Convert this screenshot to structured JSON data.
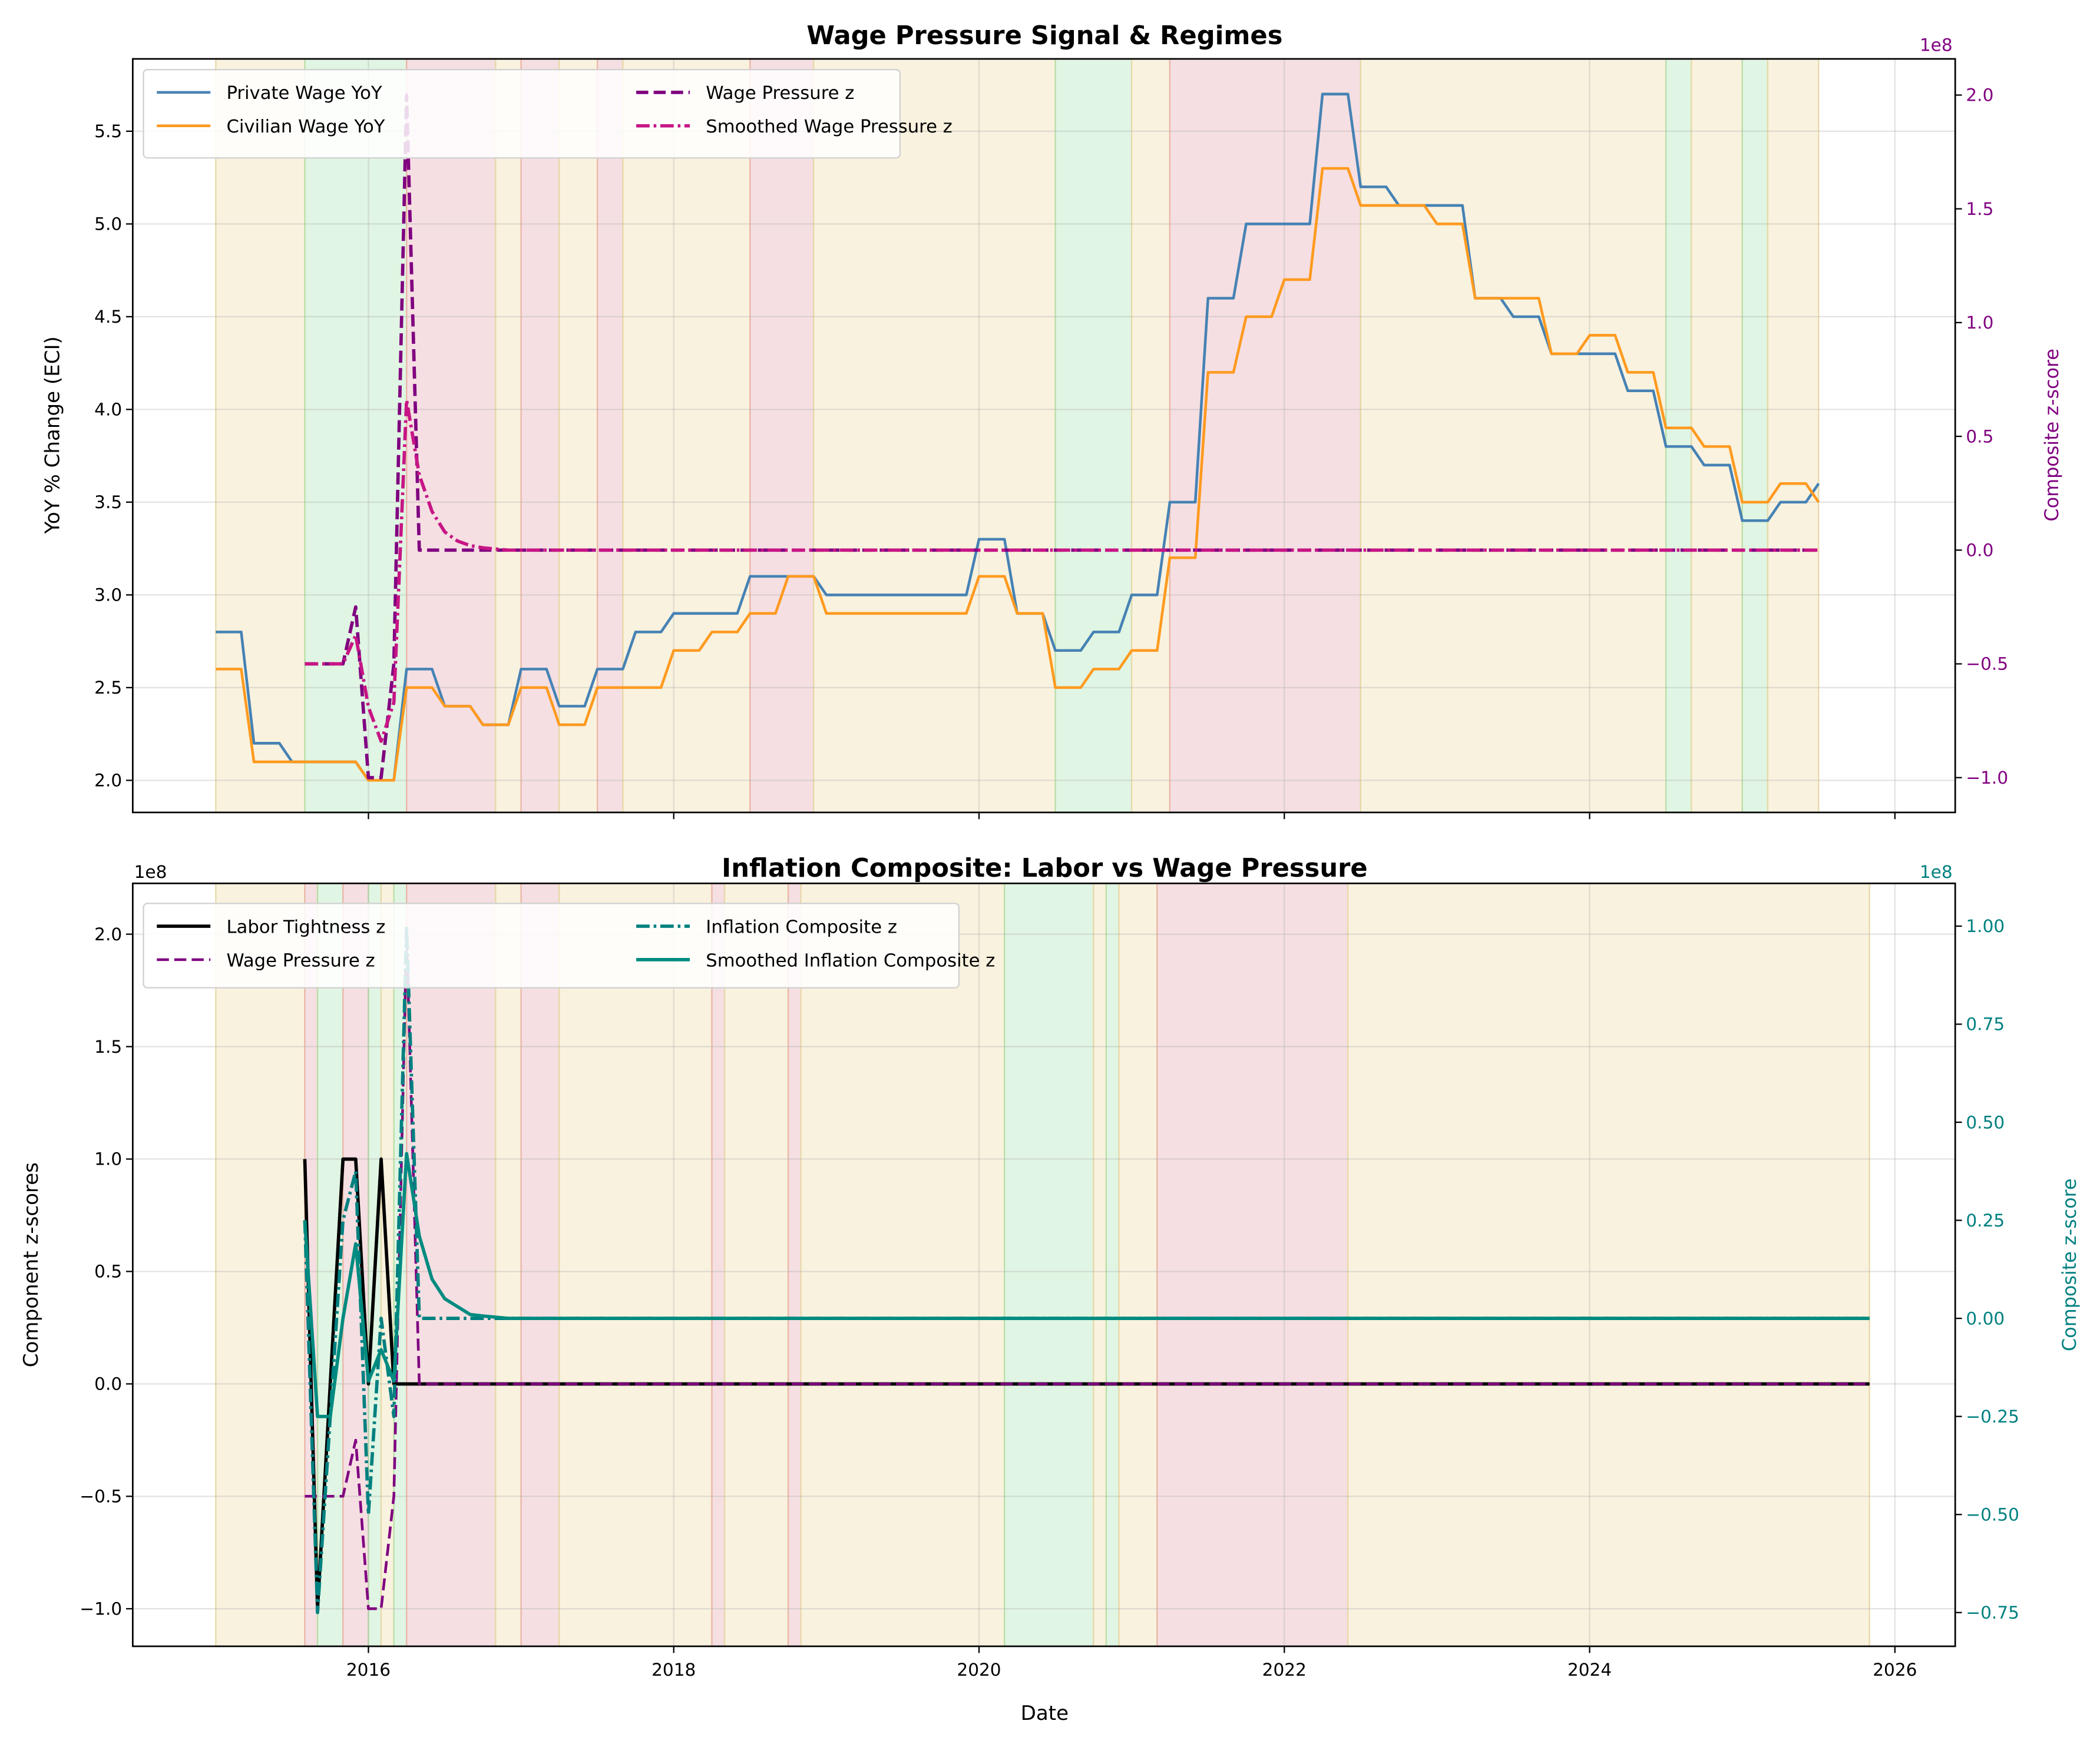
{
  "chart_data": [
    {
      "type": "line",
      "title": "Wage Pressure Signal & Regimes",
      "xlabel": "",
      "ylabel": "YoY % Change (ECI)",
      "ylabel_right": "Composite z-score",
      "y_right_offset_label": "1e8",
      "xlim": [
        2014.456,
        2026.395
      ],
      "ylim": [
        1.827,
        5.89
      ],
      "ylim_right": [
        -1.153,
        2.159
      ],
      "yticks": [
        "2.0",
        "2.5",
        "3.0",
        "3.5",
        "4.0",
        "4.5",
        "5.0",
        "5.5"
      ],
      "yticks_right": [
        "−1.0",
        "−0.5",
        "0.0",
        "0.5",
        "1.0",
        "1.5",
        "2.0"
      ],
      "grid": true,
      "legend_placement": "upper-left",
      "colors": {
        "private": "#4682b4",
        "civilian": "#ff9a1f",
        "wage_pressure": "#800080",
        "smoothed": "#c71585",
        "right_axis": "#800080"
      },
      "regimes": [
        {
          "start": "2015-01",
          "end": "2015-08",
          "regime": "neutral"
        },
        {
          "start": "2015-08",
          "end": "2016-04",
          "regime": "green"
        },
        {
          "start": "2016-04",
          "end": "2016-11",
          "regime": "red"
        },
        {
          "start": "2016-11",
          "end": "2017-01",
          "regime": "neutral"
        },
        {
          "start": "2017-01",
          "end": "2017-04",
          "regime": "red"
        },
        {
          "start": "2017-04",
          "end": "2017-07",
          "regime": "neutral"
        },
        {
          "start": "2017-07",
          "end": "2017-09",
          "regime": "red"
        },
        {
          "start": "2017-09",
          "end": "2018-07",
          "regime": "neutral"
        },
        {
          "start": "2018-07",
          "end": "2018-12",
          "regime": "red"
        },
        {
          "start": "2018-12",
          "end": "2020-07",
          "regime": "neutral"
        },
        {
          "start": "2020-07",
          "end": "2021-01",
          "regime": "green"
        },
        {
          "start": "2021-01",
          "end": "2021-04",
          "regime": "neutral"
        },
        {
          "start": "2021-04",
          "end": "2022-07",
          "regime": "red"
        },
        {
          "start": "2022-07",
          "end": "2024-07",
          "regime": "neutral"
        },
        {
          "start": "2024-07",
          "end": "2024-09",
          "regime": "green"
        },
        {
          "start": "2024-09",
          "end": "2025-01",
          "regime": "neutral"
        },
        {
          "start": "2025-01",
          "end": "2025-03",
          "regime": "green"
        },
        {
          "start": "2025-03",
          "end": "2025-07",
          "regime": "neutral"
        }
      ],
      "series": [
        {
          "name": "Private Wage YoY",
          "axis": "left",
          "style": "solid",
          "quarterly_start": "2015-01",
          "end": "2025-07",
          "values": [
            2.8,
            2.2,
            2.1,
            2.1,
            2.0,
            2.6,
            2.4,
            2.3,
            2.6,
            2.4,
            2.6,
            2.8,
            2.9,
            2.9,
            3.1,
            3.1,
            3.0,
            3.0,
            3.0,
            3.0,
            3.3,
            2.9,
            2.7,
            2.8,
            3.0,
            3.5,
            4.6,
            5.0,
            5.0,
            5.7,
            5.2,
            5.1,
            5.1,
            4.6,
            4.5,
            4.3,
            4.3,
            4.1,
            3.8,
            3.7,
            3.4,
            3.5,
            3.6
          ]
        },
        {
          "name": "Civilian Wage YoY",
          "axis": "left",
          "style": "solid",
          "quarterly_start": "2015-01",
          "end": "2025-07",
          "values": [
            2.6,
            2.1,
            2.1,
            2.1,
            2.0,
            2.5,
            2.4,
            2.3,
            2.5,
            2.3,
            2.5,
            2.5,
            2.7,
            2.8,
            2.9,
            3.1,
            2.9,
            2.9,
            2.9,
            2.9,
            3.1,
            2.9,
            2.5,
            2.6,
            2.7,
            3.2,
            4.2,
            4.5,
            4.7,
            5.3,
            5.1,
            5.1,
            5.0,
            4.6,
            4.6,
            4.3,
            4.4,
            4.2,
            3.9,
            3.8,
            3.5,
            3.6,
            3.5
          ]
        },
        {
          "name": "Wage Pressure z",
          "axis": "right",
          "style": "dashed",
          "points": [
            [
              "2015-08",
              -0.5
            ],
            [
              "2015-09",
              -0.5
            ],
            [
              "2015-10",
              -0.5
            ],
            [
              "2015-11",
              -0.5
            ],
            [
              "2015-12",
              -0.25
            ],
            [
              "2016-01",
              -1.0
            ],
            [
              "2016-02",
              -1.0
            ],
            [
              "2016-03",
              -0.5
            ],
            [
              "2016-04",
              2.0
            ],
            [
              "2016-05",
              0.0
            ],
            [
              "2025-07",
              0.0
            ]
          ]
        },
        {
          "name": "Smoothed Wage Pressure z",
          "axis": "right",
          "style": "dashdot",
          "points": [
            [
              "2015-08",
              -0.5
            ],
            [
              "2015-09",
              -0.5
            ],
            [
              "2015-10",
              -0.5
            ],
            [
              "2015-11",
              -0.5
            ],
            [
              "2015-12",
              -0.375
            ],
            [
              "2016-01",
              -0.69
            ],
            [
              "2016-02",
              -0.84
            ],
            [
              "2016-03",
              -0.67
            ],
            [
              "2016-04",
              0.66
            ],
            [
              "2016-05",
              0.33
            ],
            [
              "2016-06",
              0.17
            ],
            [
              "2016-07",
              0.08
            ],
            [
              "2016-08",
              0.04
            ],
            [
              "2016-09",
              0.02
            ],
            [
              "2016-10",
              0.01
            ],
            [
              "2016-11",
              0.005
            ],
            [
              "2016-12",
              0.0
            ],
            [
              "2025-07",
              0.0
            ]
          ]
        }
      ]
    },
    {
      "type": "line",
      "title": "Inflation Composite: Labor vs Wage Pressure",
      "xlabel": "Date",
      "ylabel": "Component z-scores",
      "ylabel_right": "Composite z-score",
      "y_left_offset_label": "1e8",
      "y_right_offset_label": "1e8",
      "xlim": [
        2014.456,
        2026.395
      ],
      "xticks": [
        "2016",
        "2018",
        "2020",
        "2022",
        "2024",
        "2026"
      ],
      "ylim": [
        -1.167,
        2.226
      ],
      "ylim_right": [
        -0.836,
        1.109
      ],
      "yticks": [
        "−1.0",
        "−0.5",
        "0.0",
        "0.5",
        "1.0",
        "1.5",
        "2.0"
      ],
      "yticks_right": [
        "−0.75",
        "−0.50",
        "−0.25",
        "0.00",
        "0.25",
        "0.50",
        "0.75",
        "1.00"
      ],
      "grid": true,
      "legend_placement": "upper-left",
      "colors": {
        "labor": "#000000",
        "wage_pressure": "#800080",
        "composite": "#008080",
        "smoothed": "#008b80",
        "right_axis": "#008080"
      },
      "regimes": [
        {
          "start": "2015-01",
          "end": "2015-08",
          "regime": "neutral"
        },
        {
          "start": "2015-08",
          "end": "2015-09",
          "regime": "red"
        },
        {
          "start": "2015-09",
          "end": "2015-11",
          "regime": "green"
        },
        {
          "start": "2015-11",
          "end": "2016-01",
          "regime": "red"
        },
        {
          "start": "2016-01",
          "end": "2016-02",
          "regime": "green"
        },
        {
          "start": "2016-02",
          "end": "2016-03",
          "regime": "neutral"
        },
        {
          "start": "2016-03",
          "end": "2016-04",
          "regime": "green"
        },
        {
          "start": "2016-04",
          "end": "2016-11",
          "regime": "red"
        },
        {
          "start": "2016-11",
          "end": "2017-01",
          "regime": "neutral"
        },
        {
          "start": "2017-01",
          "end": "2017-04",
          "regime": "red"
        },
        {
          "start": "2017-04",
          "end": "2018-04",
          "regime": "neutral"
        },
        {
          "start": "2018-04",
          "end": "2018-05",
          "regime": "red"
        },
        {
          "start": "2018-05",
          "end": "2018-10",
          "regime": "neutral"
        },
        {
          "start": "2018-10",
          "end": "2018-11",
          "regime": "red"
        },
        {
          "start": "2018-11",
          "end": "2020-03",
          "regime": "neutral"
        },
        {
          "start": "2020-03",
          "end": "2020-10",
          "regime": "green"
        },
        {
          "start": "2020-10",
          "end": "2020-11",
          "regime": "neutral"
        },
        {
          "start": "2020-11",
          "end": "2020-12",
          "regime": "green"
        },
        {
          "start": "2020-12",
          "end": "2021-03",
          "regime": "neutral"
        },
        {
          "start": "2021-03",
          "end": "2022-06",
          "regime": "red"
        },
        {
          "start": "2022-06",
          "end": "2025-11",
          "regime": "neutral"
        }
      ],
      "series": [
        {
          "name": "Labor Tightness z",
          "axis": "left",
          "style": "solid",
          "points": [
            [
              "2015-08",
              1.0
            ],
            [
              "2015-09",
              -1.0
            ],
            [
              "2015-10",
              0.0
            ],
            [
              "2015-11",
              1.0
            ],
            [
              "2015-12",
              1.0
            ],
            [
              "2016-01",
              0.0
            ],
            [
              "2016-02",
              1.0
            ],
            [
              "2016-03",
              0.0
            ],
            [
              "2025-11",
              0.0
            ]
          ]
        },
        {
          "name": "Wage Pressure z",
          "axis": "left",
          "style": "dashed",
          "points": [
            [
              "2015-08",
              -0.5
            ],
            [
              "2015-09",
              -0.5
            ],
            [
              "2015-10",
              -0.5
            ],
            [
              "2015-11",
              -0.5
            ],
            [
              "2015-12",
              -0.25
            ],
            [
              "2016-01",
              -1.0
            ],
            [
              "2016-02",
              -1.0
            ],
            [
              "2016-03",
              -0.5
            ],
            [
              "2016-04",
              2.0
            ],
            [
              "2016-05",
              0.0
            ],
            [
              "2025-11",
              0.0
            ]
          ]
        },
        {
          "name": "Inflation Composite z",
          "axis": "right",
          "style": "dashdot",
          "points": [
            [
              "2015-08",
              0.25
            ],
            [
              "2015-09",
              -0.75
            ],
            [
              "2015-10",
              -0.25
            ],
            [
              "2015-11",
              0.25
            ],
            [
              "2015-12",
              0.375
            ],
            [
              "2016-01",
              -0.5
            ],
            [
              "2016-02",
              0.0
            ],
            [
              "2016-03",
              -0.25
            ],
            [
              "2016-04",
              1.0
            ],
            [
              "2016-05",
              0.0
            ],
            [
              "2025-11",
              0.0
            ]
          ]
        },
        {
          "name": "Smoothed Inflation Composite z",
          "axis": "right",
          "style": "solid",
          "points": [
            [
              "2015-08",
              0.25
            ],
            [
              "2015-09",
              -0.25
            ],
            [
              "2015-10",
              -0.25
            ],
            [
              "2015-11",
              0.0
            ],
            [
              "2015-12",
              0.19
            ],
            [
              "2016-01",
              -0.16
            ],
            [
              "2016-02",
              -0.08
            ],
            [
              "2016-03",
              -0.16
            ],
            [
              "2016-04",
              0.42
            ],
            [
              "2016-05",
              0.21
            ],
            [
              "2016-06",
              0.1
            ],
            [
              "2016-07",
              0.05
            ],
            [
              "2016-08",
              0.03
            ],
            [
              "2016-09",
              0.01
            ],
            [
              "2016-10",
              0.006
            ],
            [
              "2016-11",
              0.003
            ],
            [
              "2016-12",
              0.0
            ],
            [
              "2025-11",
              0.0
            ]
          ]
        }
      ]
    }
  ]
}
